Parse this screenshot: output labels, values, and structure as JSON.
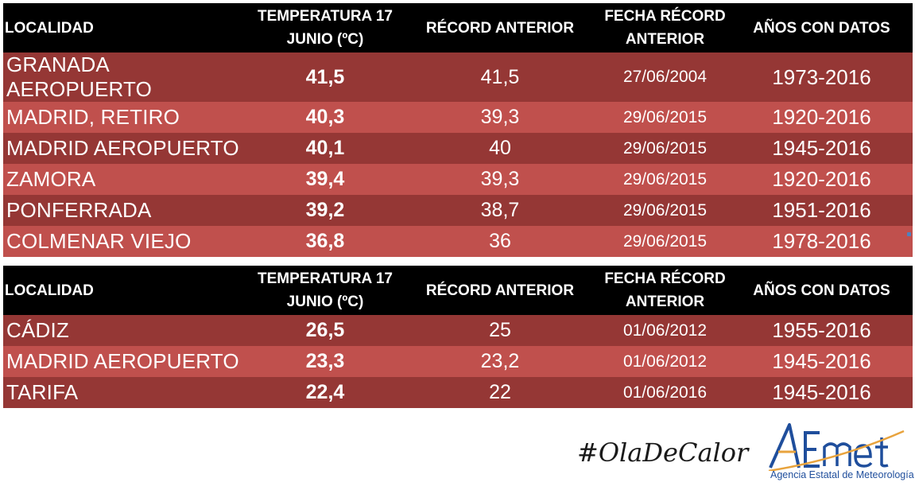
{
  "headers": {
    "localidad": "LOCALIDAD",
    "temperatura_line1": "TEMPERATURA 17",
    "temperatura_line2": "JUNIO (ºC)",
    "record": "RÉCORD ANTERIOR",
    "fecha_line1": "FECHA RÉCORD",
    "fecha_line2": "ANTERIOR",
    "anos": "AÑOS CON DATOS"
  },
  "table_max": [
    {
      "localidad": "GRANADA AEROPUERTO",
      "temperatura": "41,5",
      "record": "41,5",
      "fecha": "27/06/2004",
      "anos": "1973-2016"
    },
    {
      "localidad": "MADRID, RETIRO",
      "temperatura": "40,3",
      "record": "39,3",
      "fecha": "29/06/2015",
      "anos": "1920-2016"
    },
    {
      "localidad": "MADRID AEROPUERTO",
      "temperatura": "40,1",
      "record": "40",
      "fecha": "29/06/2015",
      "anos": "1945-2016"
    },
    {
      "localidad": "ZAMORA",
      "temperatura": "39,4",
      "record": "39,3",
      "fecha": "29/06/2015",
      "anos": "1920-2016"
    },
    {
      "localidad": "PONFERRADA",
      "temperatura": "39,2",
      "record": "38,7",
      "fecha": "29/06/2015",
      "anos": "1951-2016"
    },
    {
      "localidad": "COLMENAR VIEJO",
      "temperatura": "36,8",
      "record": "36",
      "fecha": "29/06/2015",
      "anos": "1978-2016"
    }
  ],
  "table_min": [
    {
      "localidad": "CÁDIZ",
      "temperatura": "26,5",
      "record": "25",
      "fecha": "01/06/2012",
      "anos": "1955-2016"
    },
    {
      "localidad": "MADRID AEROPUERTO",
      "temperatura": "23,3",
      "record": "23,2",
      "fecha": "01/06/2012",
      "anos": "1945-2016"
    },
    {
      "localidad": "TARIFA",
      "temperatura": "22,4",
      "record": "22",
      "fecha": "01/06/2016",
      "anos": "1945-2016"
    }
  ],
  "colors": {
    "header_bg": "#000000",
    "row_dark": "#953735",
    "row_light": "#c0504d",
    "logo_blue": "#1f4e9c",
    "logo_orange": "#e8a33d"
  },
  "footer": {
    "hashtag": "#OlaDeCalor",
    "logo_text": "AEMet",
    "logo_subtitle": "Agencia Estatal de Meteorología"
  }
}
